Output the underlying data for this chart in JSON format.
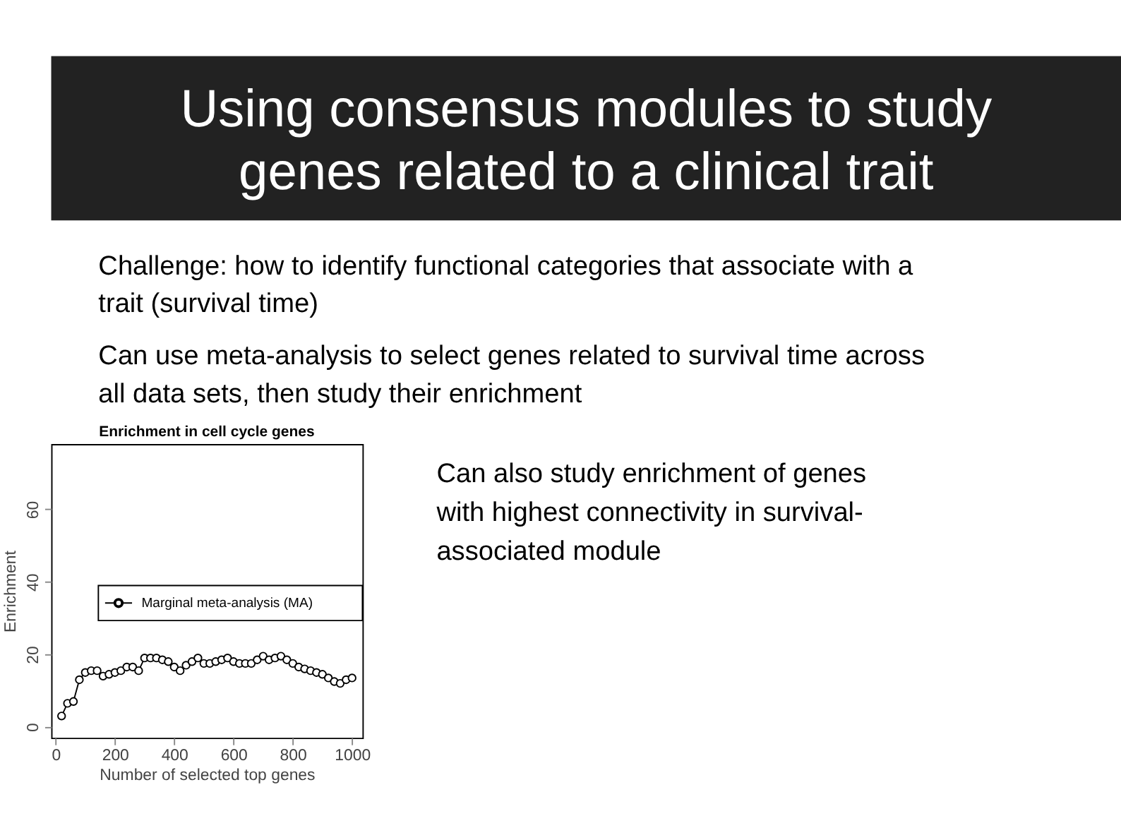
{
  "chart_data": {
    "type": "line",
    "title": "Enrichment in cell cycle genes",
    "xlabel": "Number of selected top genes",
    "ylabel": "Enrichment",
    "annotations": [
      "Using consensus modules to study genes related to a clinical trait",
      "Challenge: how to identify functional categories that associate with a trait (survival time)",
      "Can use meta-analysis to select genes related to survival time across all data sets, then study their enrichment",
      "Can also study enrichment of genes with highest connectivity in survival-associated module"
    ],
    "x": [
      20,
      40,
      60,
      80,
      100,
      120,
      140,
      160,
      180,
      200,
      220,
      240,
      260,
      280,
      300,
      320,
      340,
      360,
      380,
      400,
      420,
      440,
      460,
      480,
      500,
      520,
      540,
      560,
      580,
      600,
      620,
      640,
      660,
      680,
      700,
      720,
      740,
      760,
      780,
      800,
      820,
      840,
      860,
      880,
      900,
      920,
      940,
      960,
      980,
      1000
    ],
    "series": [
      {
        "name": "Marginal meta-analysis (MA)",
        "color": "#000000",
        "values": [
          3,
          6.5,
          7,
          13,
          15,
          15.5,
          15.5,
          14,
          14.5,
          15,
          15.5,
          16.5,
          16.5,
          15.5,
          19,
          19,
          19,
          18.5,
          18,
          16.5,
          15.5,
          17,
          18,
          19,
          17.5,
          17.5,
          18,
          18.5,
          19,
          18,
          17.5,
          17.5,
          17.5,
          18.5,
          19.5,
          18.5,
          19,
          19.5,
          18.5,
          17.5,
          16.5,
          16,
          15.5,
          15,
          14.5,
          13.5,
          12.5,
          12,
          13,
          13.5
        ]
      }
    ],
    "xlim": [
      -15,
      1035
    ],
    "xticks": [
      0,
      200,
      400,
      600,
      800,
      1000
    ],
    "ylim": [
      -3,
      78
    ],
    "yticks": [
      0,
      20,
      40,
      60
    ],
    "grid": false,
    "legend": "right",
    "marker": "circle",
    "line_style": "solid"
  }
}
